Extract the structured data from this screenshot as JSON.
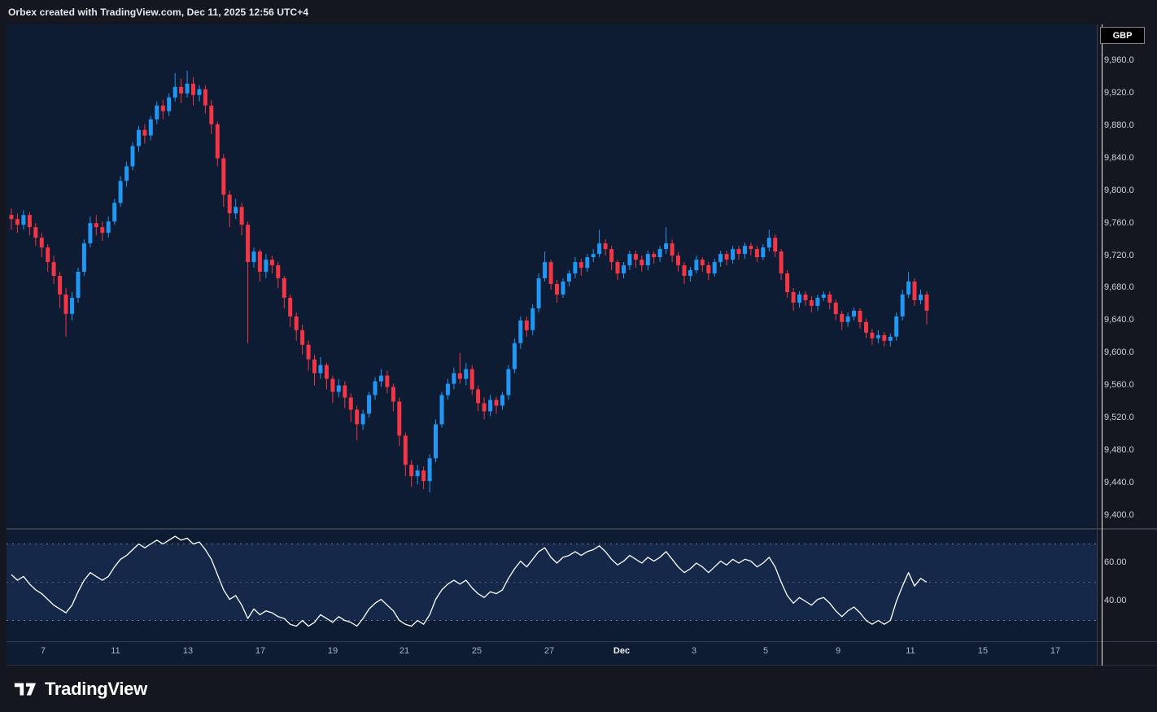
{
  "header": {
    "attribution": "Orbex created with TradingView.com, Dec 11, 2025 12:56 UTC+4"
  },
  "symbol_badge": "GBP",
  "footer": {
    "brand": "TradingView"
  },
  "colors": {
    "background": "#0d1b33",
    "frame": "#14171f",
    "up": "#2196f3",
    "down": "#f23645",
    "rsi_line": "#ffffff",
    "rsi_band_fill": "rgba(88,128,235,0.13)",
    "level_line": "#8d92a0",
    "axis_text": "#cdd0d9"
  },
  "chart_data": [
    {
      "type": "candlestick",
      "symbol": "GBP",
      "ylim": [
        9385,
        10005
      ],
      "grid": false,
      "price_axis_labels": [
        "9,960.0",
        "9,920.0",
        "9,880.0",
        "9,840.0",
        "9,800.0",
        "9,760.0",
        "9,720.0",
        "9,680.0",
        "9,640.0",
        "9,600.0",
        "9,560.0",
        "9,520.0",
        "9,480.0",
        "9,440.0",
        "9,400.0"
      ],
      "time_axis": [
        {
          "label": "7",
          "x": 45
        },
        {
          "label": "11",
          "x": 134
        },
        {
          "label": "13",
          "x": 223
        },
        {
          "label": "17",
          "x": 312
        },
        {
          "label": "19",
          "x": 401
        },
        {
          "label": "21",
          "x": 489
        },
        {
          "label": "25",
          "x": 578
        },
        {
          "label": "27",
          "x": 667
        },
        {
          "label": "Dec",
          "x": 756,
          "emphasis": true
        },
        {
          "label": "3",
          "x": 845
        },
        {
          "label": "5",
          "x": 933
        },
        {
          "label": "9",
          "x": 1022
        },
        {
          "label": "11",
          "x": 1111
        },
        {
          "label": "15",
          "x": 1200
        },
        {
          "label": "17",
          "x": 1289
        }
      ],
      "candles": [
        [
          9770,
          9778,
          9752,
          9765
        ],
        [
          9765,
          9772,
          9748,
          9758
        ],
        [
          9758,
          9776,
          9752,
          9770
        ],
        [
          9770,
          9774,
          9745,
          9755
        ],
        [
          9755,
          9760,
          9732,
          9742
        ],
        [
          9742,
          9748,
          9718,
          9730
        ],
        [
          9730,
          9734,
          9700,
          9712
        ],
        [
          9712,
          9720,
          9685,
          9695
        ],
        [
          9695,
          9700,
          9655,
          9672
        ],
        [
          9672,
          9680,
          9620,
          9648
        ],
        [
          9648,
          9675,
          9640,
          9668
        ],
        [
          9668,
          9705,
          9662,
          9700
        ],
        [
          9700,
          9740,
          9695,
          9735
        ],
        [
          9735,
          9768,
          9730,
          9760
        ],
        [
          9760,
          9770,
          9745,
          9755
        ],
        [
          9755,
          9762,
          9738,
          9748
        ],
        [
          9748,
          9768,
          9742,
          9762
        ],
        [
          9762,
          9790,
          9758,
          9785
        ],
        [
          9785,
          9818,
          9780,
          9812
        ],
        [
          9812,
          9836,
          9805,
          9830
        ],
        [
          9830,
          9860,
          9825,
          9855
        ],
        [
          9855,
          9880,
          9848,
          9875
        ],
        [
          9875,
          9882,
          9858,
          9868
        ],
        [
          9868,
          9892,
          9862,
          9888
        ],
        [
          9888,
          9910,
          9882,
          9905
        ],
        [
          9905,
          9912,
          9888,
          9898
        ],
        [
          9898,
          9920,
          9892,
          9915
        ],
        [
          9915,
          9945,
          9910,
          9928
        ],
        [
          9928,
          9938,
          9908,
          9920
        ],
        [
          9920,
          9948,
          9915,
          9932
        ],
        [
          9932,
          9940,
          9905,
          9918
        ],
        [
          9918,
          9930,
          9910,
          9925
        ],
        [
          9925,
          9930,
          9895,
          9905
        ],
        [
          9905,
          9912,
          9870,
          9882
        ],
        [
          9882,
          9885,
          9830,
          9840
        ],
        [
          9840,
          9845,
          9780,
          9795
        ],
        [
          9795,
          9800,
          9755,
          9772
        ],
        [
          9772,
          9790,
          9765,
          9780
        ],
        [
          9780,
          9785,
          9745,
          9758
        ],
        [
          9758,
          9762,
          9612,
          9712
        ],
        [
          9712,
          9730,
          9705,
          9725
        ],
        [
          9725,
          9728,
          9688,
          9700
        ],
        [
          9700,
          9722,
          9692,
          9715
        ],
        [
          9715,
          9720,
          9698,
          9708
        ],
        [
          9708,
          9712,
          9680,
          9692
        ],
        [
          9692,
          9695,
          9655,
          9668
        ],
        [
          9668,
          9672,
          9632,
          9645
        ],
        [
          9645,
          9650,
          9615,
          9628
        ],
        [
          9628,
          9635,
          9598,
          9610
        ],
        [
          9610,
          9615,
          9578,
          9592
        ],
        [
          9592,
          9598,
          9560,
          9575
        ],
        [
          9575,
          9595,
          9568,
          9585
        ],
        [
          9585,
          9588,
          9555,
          9568
        ],
        [
          9568,
          9572,
          9538,
          9552
        ],
        [
          9552,
          9568,
          9545,
          9560
        ],
        [
          9560,
          9565,
          9532,
          9545
        ],
        [
          9545,
          9550,
          9515,
          9530
        ],
        [
          9530,
          9535,
          9492,
          9512
        ],
        [
          9512,
          9530,
          9505,
          9525
        ],
        [
          9525,
          9552,
          9520,
          9548
        ],
        [
          9548,
          9570,
          9542,
          9565
        ],
        [
          9565,
          9580,
          9558,
          9572
        ],
        [
          9572,
          9578,
          9550,
          9558
        ],
        [
          9558,
          9562,
          9528,
          9540
        ],
        [
          9540,
          9545,
          9485,
          9498
        ],
        [
          9498,
          9502,
          9448,
          9462
        ],
        [
          9462,
          9468,
          9435,
          9448
        ],
        [
          9448,
          9462,
          9438,
          9455
        ],
        [
          9455,
          9460,
          9432,
          9442
        ],
        [
          9442,
          9475,
          9428,
          9470
        ],
        [
          9470,
          9518,
          9465,
          9512
        ],
        [
          9512,
          9552,
          9508,
          9548
        ],
        [
          9548,
          9568,
          9542,
          9562
        ],
        [
          9562,
          9582,
          9555,
          9575
        ],
        [
          9575,
          9600,
          9562,
          9568
        ],
        [
          9568,
          9588,
          9560,
          9580
        ],
        [
          9580,
          9585,
          9548,
          9555
        ],
        [
          9555,
          9560,
          9528,
          9538
        ],
        [
          9538,
          9545,
          9518,
          9528
        ],
        [
          9528,
          9548,
          9522,
          9542
        ],
        [
          9542,
          9546,
          9525,
          9535
        ],
        [
          9535,
          9552,
          9530,
          9548
        ],
        [
          9548,
          9585,
          9542,
          9580
        ],
        [
          9580,
          9618,
          9575,
          9612
        ],
        [
          9612,
          9645,
          9605,
          9640
        ],
        [
          9640,
          9645,
          9620,
          9628
        ],
        [
          9628,
          9660,
          9622,
          9655
        ],
        [
          9655,
          9698,
          9650,
          9692
        ],
        [
          9692,
          9725,
          9688,
          9712
        ],
        [
          9712,
          9715,
          9678,
          9685
        ],
        [
          9685,
          9690,
          9662,
          9672
        ],
        [
          9672,
          9692,
          9668,
          9688
        ],
        [
          9688,
          9702,
          9682,
          9698
        ],
        [
          9698,
          9718,
          9692,
          9712
        ],
        [
          9712,
          9716,
          9695,
          9705
        ],
        [
          9705,
          9722,
          9700,
          9718
        ],
        [
          9718,
          9728,
          9712,
          9722
        ],
        [
          9722,
          9752,
          9718,
          9735
        ],
        [
          9735,
          9740,
          9720,
          9728
        ],
        [
          9728,
          9732,
          9702,
          9712
        ],
        [
          9712,
          9715,
          9690,
          9698
        ],
        [
          9698,
          9712,
          9692,
          9708
        ],
        [
          9708,
          9726,
          9702,
          9722
        ],
        [
          9722,
          9726,
          9705,
          9715
        ],
        [
          9715,
          9720,
          9700,
          9708
        ],
        [
          9708,
          9726,
          9702,
          9722
        ],
        [
          9722,
          9725,
          9710,
          9718
        ],
        [
          9718,
          9732,
          9712,
          9728
        ],
        [
          9728,
          9755,
          9722,
          9735
        ],
        [
          9735,
          9740,
          9712,
          9720
        ],
        [
          9720,
          9724,
          9700,
          9708
        ],
        [
          9708,
          9712,
          9685,
          9695
        ],
        [
          9695,
          9706,
          9688,
          9702
        ],
        [
          9702,
          9720,
          9698,
          9715
        ],
        [
          9715,
          9718,
          9700,
          9708
        ],
        [
          9708,
          9712,
          9690,
          9698
        ],
        [
          9698,
          9716,
          9694,
          9712
        ],
        [
          9712,
          9726,
          9706,
          9722
        ],
        [
          9722,
          9726,
          9708,
          9715
        ],
        [
          9715,
          9732,
          9710,
          9728
        ],
        [
          9728,
          9732,
          9715,
          9722
        ],
        [
          9722,
          9736,
          9716,
          9732
        ],
        [
          9732,
          9736,
          9720,
          9728
        ],
        [
          9728,
          9732,
          9712,
          9718
        ],
        [
          9718,
          9734,
          9714,
          9730
        ],
        [
          9730,
          9752,
          9725,
          9742
        ],
        [
          9742,
          9746,
          9718,
          9725
        ],
        [
          9725,
          9728,
          9690,
          9698
        ],
        [
          9698,
          9702,
          9668,
          9675
        ],
        [
          9675,
          9680,
          9652,
          9662
        ],
        [
          9662,
          9676,
          9656,
          9672
        ],
        [
          9672,
          9676,
          9658,
          9665
        ],
        [
          9665,
          9670,
          9650,
          9658
        ],
        [
          9658,
          9672,
          9652,
          9668
        ],
        [
          9668,
          9676,
          9664,
          9672
        ],
        [
          9672,
          9676,
          9654,
          9662
        ],
        [
          9662,
          9666,
          9640,
          9648
        ],
        [
          9648,
          9652,
          9628,
          9638
        ],
        [
          9638,
          9650,
          9632,
          9645
        ],
        [
          9645,
          9656,
          9640,
          9652
        ],
        [
          9652,
          9655,
          9630,
          9638
        ],
        [
          9638,
          9642,
          9618,
          9625
        ],
        [
          9625,
          9630,
          9610,
          9618
        ],
        [
          9618,
          9628,
          9612,
          9622
        ],
        [
          9622,
          9626,
          9608,
          9615
        ],
        [
          9615,
          9624,
          9608,
          9620
        ],
        [
          9620,
          9650,
          9615,
          9645
        ],
        [
          9645,
          9678,
          9640,
          9672
        ],
        [
          9672,
          9700,
          9668,
          9688
        ],
        [
          9688,
          9692,
          9658,
          9665
        ],
        [
          9665,
          9678,
          9660,
          9672
        ],
        [
          9672,
          9676,
          9635,
          9652
        ]
      ]
    },
    {
      "type": "line",
      "name": "RSI",
      "ylim": [
        20,
        77
      ],
      "levels": [
        70,
        50,
        30
      ],
      "axis_labels": [
        "60.00",
        "40.00"
      ],
      "values": [
        54,
        51,
        53,
        49,
        46,
        44,
        41,
        38,
        36,
        34,
        38,
        45,
        51,
        55,
        53,
        51,
        53,
        58,
        62,
        64,
        67,
        70,
        68,
        70,
        72,
        70,
        72,
        74,
        72,
        73,
        70,
        71,
        67,
        62,
        54,
        46,
        41,
        43,
        38,
        31,
        36,
        33,
        35,
        34,
        32,
        31,
        28,
        27,
        30,
        27,
        29,
        33,
        31,
        29,
        32,
        30,
        29,
        27,
        31,
        36,
        39,
        41,
        38,
        35,
        30,
        28,
        27,
        30,
        28,
        33,
        41,
        46,
        49,
        51,
        49,
        51,
        47,
        44,
        42,
        45,
        44,
        46,
        52,
        57,
        61,
        58,
        62,
        66,
        68,
        63,
        60,
        63,
        64,
        66,
        64,
        66,
        67,
        69,
        66,
        62,
        59,
        61,
        64,
        62,
        60,
        63,
        61,
        63,
        66,
        62,
        58,
        55,
        57,
        60,
        58,
        55,
        58,
        61,
        59,
        62,
        60,
        62,
        61,
        58,
        60,
        63,
        58,
        50,
        43,
        39,
        42,
        40,
        38,
        41,
        42,
        39,
        35,
        32,
        35,
        37,
        34,
        30,
        28,
        30,
        28,
        30,
        40,
        48,
        55,
        48,
        52,
        50
      ]
    }
  ]
}
